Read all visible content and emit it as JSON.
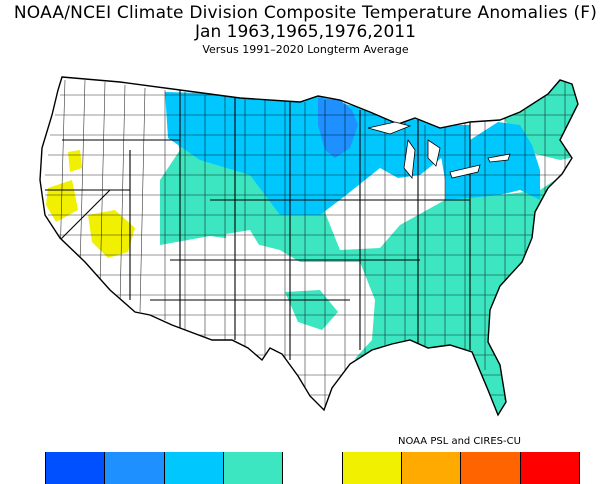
{
  "header": {
    "title": "NOAA/NCEI Climate Division Composite Temperature Anomalies (F)",
    "subtitle": "Jan  1963,1965,1976,2011",
    "comparison": "Versus 1991–2020 Longterm Average"
  },
  "map": {
    "palette": {
      "blue_dark": "#0050ff",
      "blue_mid": "#1e90ff",
      "cyan": "#00c8ff",
      "aqua": "#3ce6c0",
      "white": "#ffffff",
      "yellow": "#f0f000",
      "orange": "#ffaa00",
      "orange_red": "#ff6400",
      "red": "#ff0000"
    }
  },
  "credit": "NOAA PSL and CIRES-CU",
  "legend": {
    "colors": [
      "#0050ff",
      "#1e90ff",
      "#00c8ff",
      "#3ce6c0",
      "#ffffff",
      "#f0f000",
      "#ffaa00",
      "#ff6400",
      "#ff0000"
    ]
  }
}
